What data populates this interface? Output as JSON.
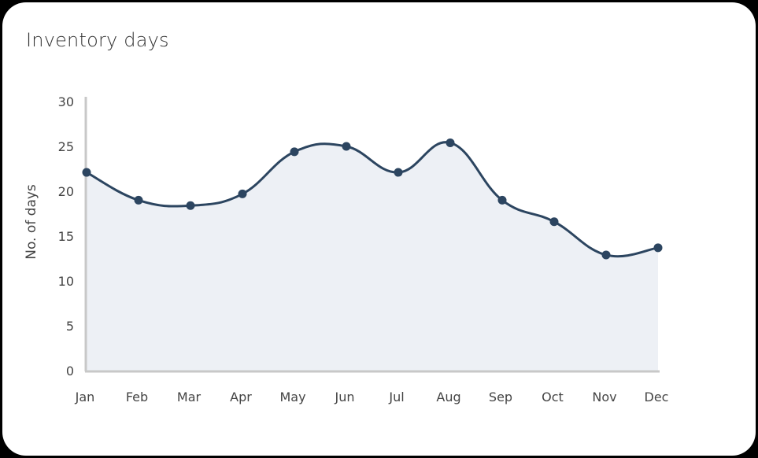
{
  "card": {
    "title": "Inventory days"
  },
  "colors": {
    "line": "#2c4560",
    "fill": "#edf0f5",
    "axis": "#c8c8c8",
    "text": "#444444"
  },
  "chart_data": {
    "type": "line",
    "title": "Inventory days",
    "xlabel": "",
    "ylabel": "No. of days",
    "categories": [
      "Jan",
      "Feb",
      "Mar",
      "Apr",
      "May",
      "Jun",
      "Jul",
      "Aug",
      "Sep",
      "Oct",
      "Nov",
      "Dec"
    ],
    "series": [
      {
        "name": "Inventory days",
        "values": [
          22.1,
          19.0,
          18.4,
          19.7,
          24.4,
          25.0,
          22.1,
          25.4,
          19.0,
          16.6,
          12.9,
          13.7
        ]
      }
    ],
    "ylim": [
      0,
      30
    ],
    "yticks": [
      0,
      5,
      10,
      15,
      20,
      25,
      30
    ],
    "grid": false,
    "area_fill": true,
    "smooth": true,
    "markers": true,
    "legend": "none"
  }
}
